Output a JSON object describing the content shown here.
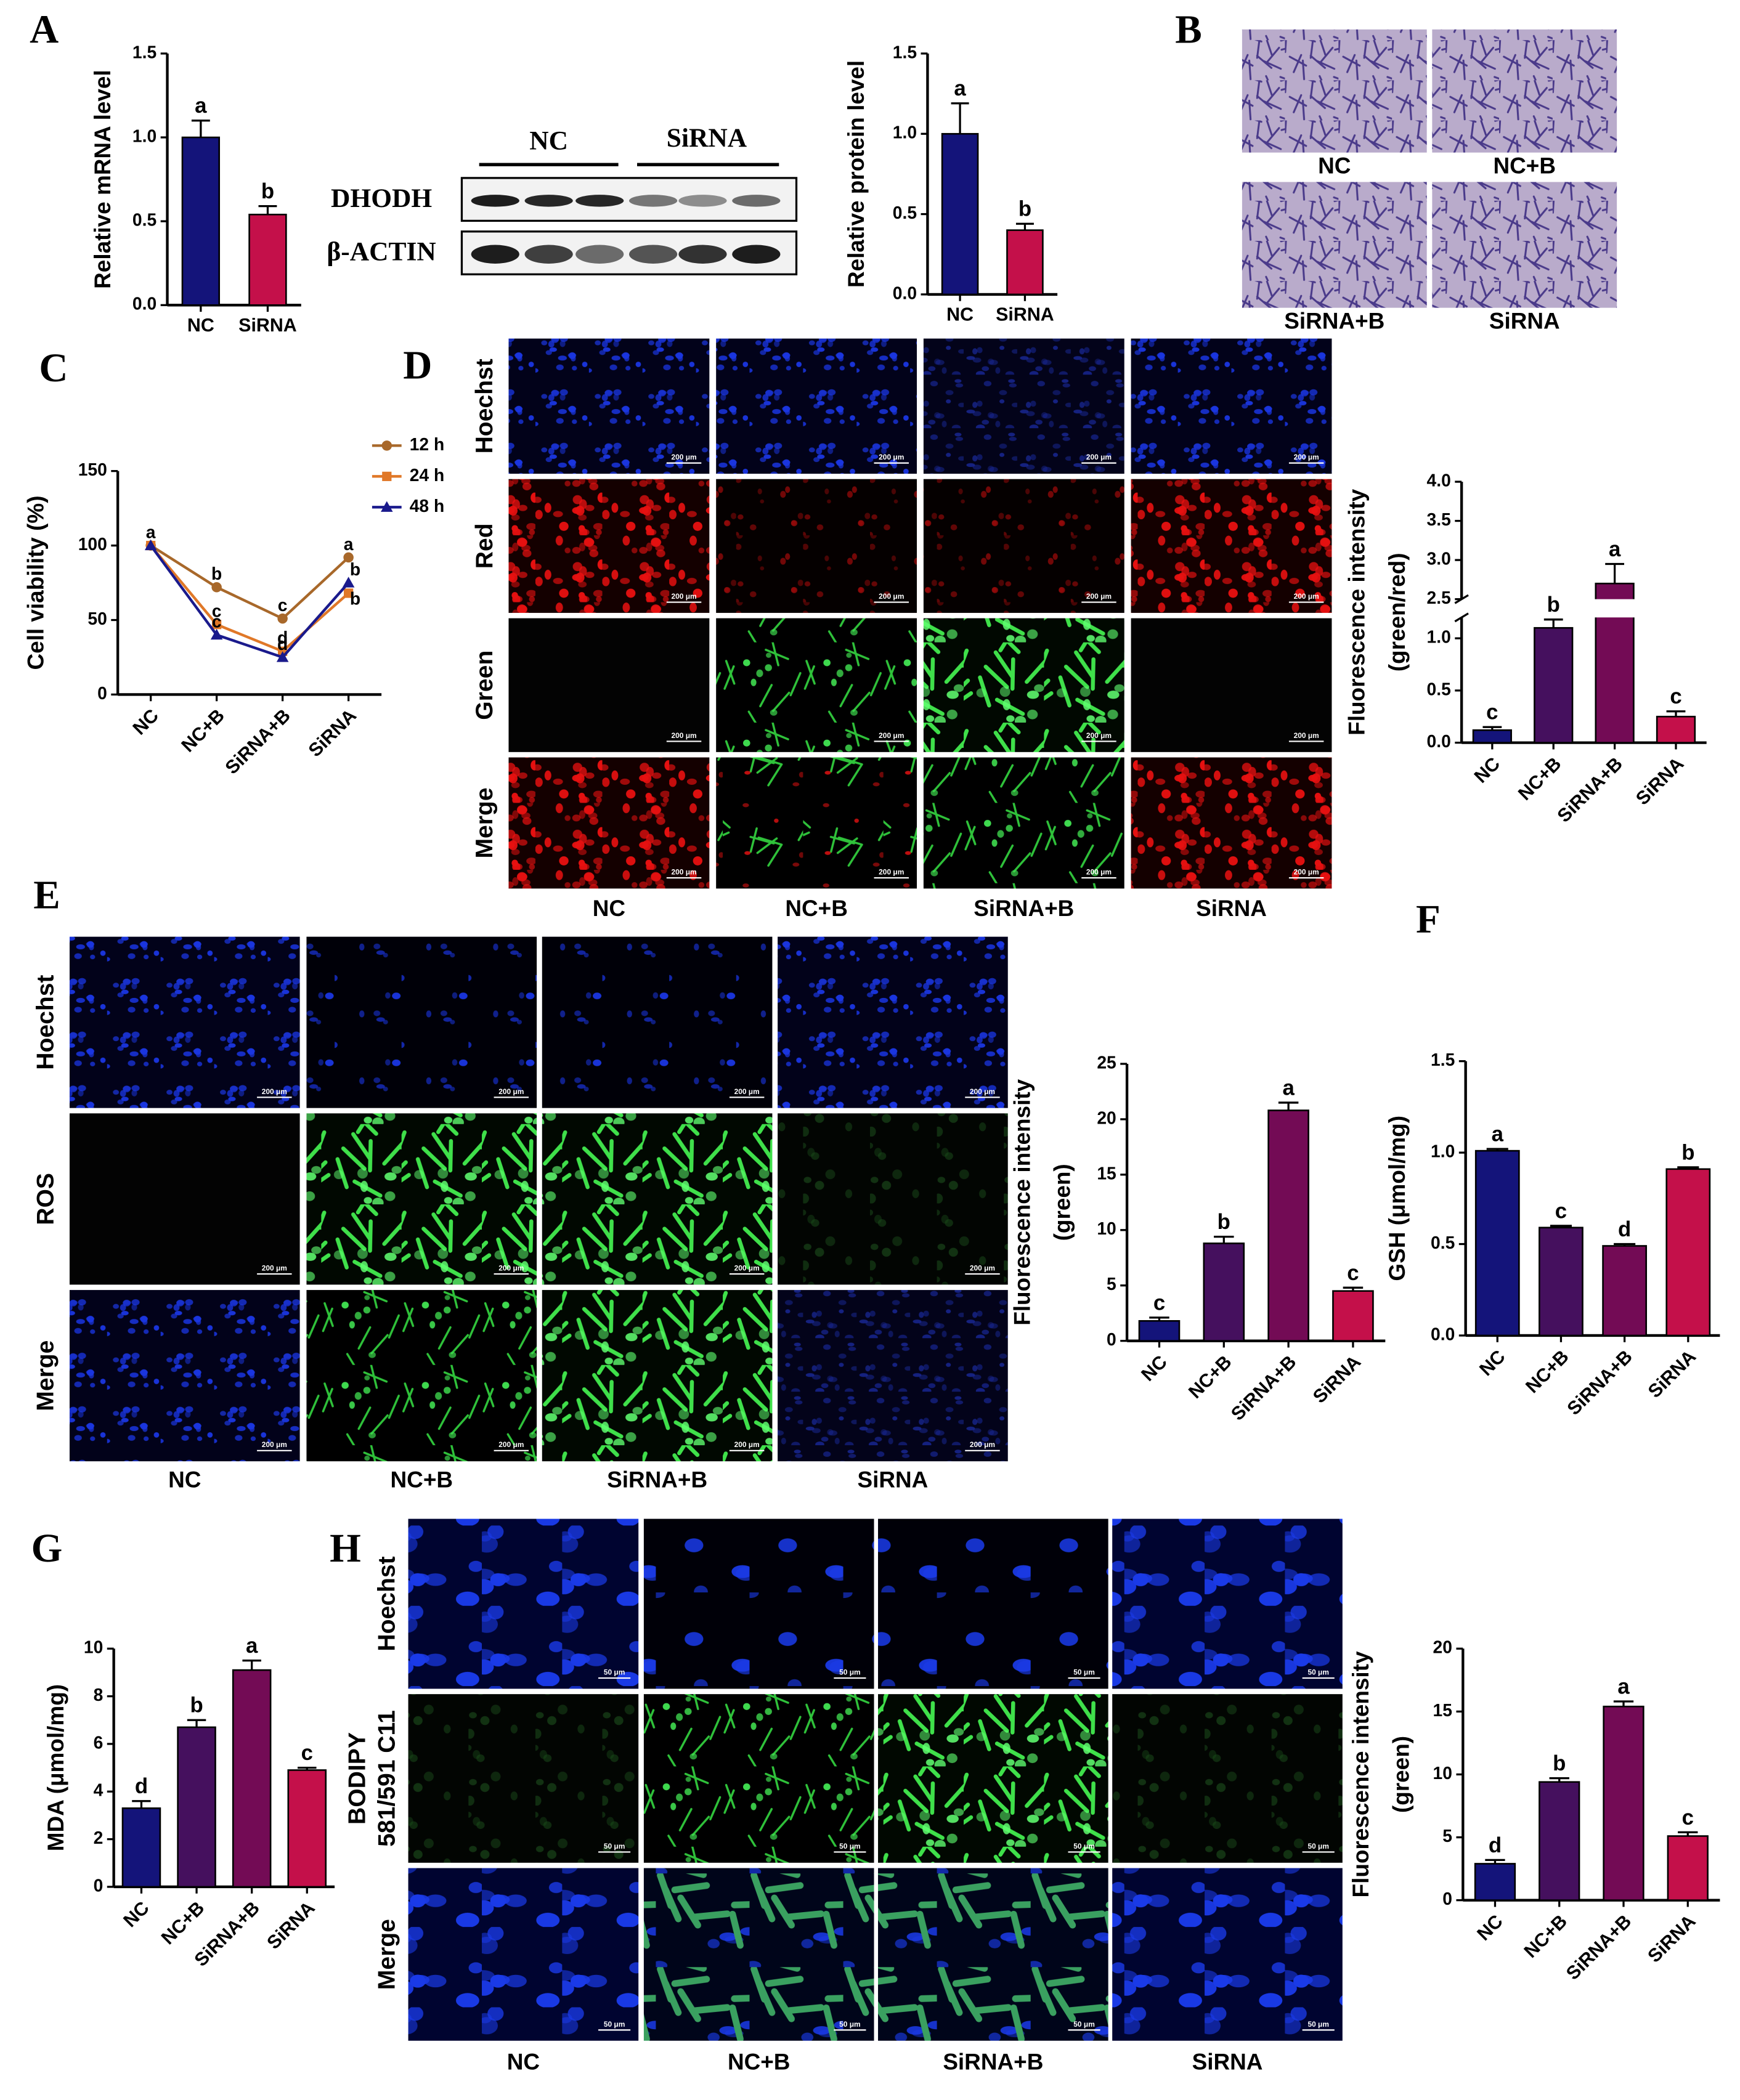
{
  "panel_letters": [
    "A",
    "B",
    "C",
    "D",
    "E",
    "F",
    "G",
    "H"
  ],
  "western_blot": {
    "groups": [
      "NC",
      "SiRNA"
    ],
    "rows": [
      "DHODH",
      "β-ACTIN"
    ]
  },
  "panel_b": {
    "labels": [
      "NC",
      "NC+B",
      "SiRNA+B",
      "SiRNA"
    ]
  },
  "panel_d": {
    "rows": [
      "Hoechst",
      "Red",
      "Green",
      "Merge"
    ],
    "columns": [
      "NC",
      "NC+B",
      "SiRNA+B",
      "SiRNA"
    ],
    "scale_bar": "200 μm"
  },
  "panel_e": {
    "rows": [
      "Hoechst",
      "ROS",
      "Merge"
    ],
    "columns": [
      "NC",
      "NC+B",
      "SiRNA+B",
      "SiRNA"
    ],
    "scale_bar": "200 μm"
  },
  "panel_h": {
    "rows": [
      "Hoechst",
      [
        "BODIPY",
        "581/591 C11"
      ],
      "Merge"
    ],
    "columns": [
      "NC",
      "NC+B",
      "SiRNA+B",
      "SiRNA"
    ],
    "scale_bar": "50 μm"
  },
  "chart_data": [
    {
      "type": "bar",
      "ylabel": "Relative mRNA level",
      "categories": [
        "NC",
        "SiRNA"
      ],
      "values": [
        1.0,
        0.54
      ],
      "errors": [
        0.1,
        0.05
      ],
      "annotations": [
        "a",
        "b"
      ],
      "colors": [
        "#14147a",
        "#c4104a"
      ],
      "ylim": [
        0,
        1.5
      ],
      "yticks": [
        {
          "value": 0,
          "label": "0.0"
        },
        0.5,
        {
          "value": 1,
          "label": "1.0"
        },
        1.5
      ]
    },
    {
      "type": "bar",
      "ylabel": "Relative protein level",
      "categories": [
        "NC",
        "SiRNA"
      ],
      "values": [
        1.0,
        0.4
      ],
      "errors": [
        0.19,
        0.04
      ],
      "annotations": [
        "a",
        "b"
      ],
      "colors": [
        "#14147a",
        "#c4104a"
      ],
      "ylim": [
        0,
        1.5
      ],
      "yticks": [
        {
          "value": 0,
          "label": "0.0"
        },
        0.5,
        {
          "value": 1,
          "label": "1.0"
        },
        1.5
      ]
    },
    {
      "type": "line",
      "ylabel": "Cell viability (%)",
      "categories": [
        "NC",
        "NC+B",
        "SiRNA+B",
        "SiRNA"
      ],
      "ylim": [
        0,
        150
      ],
      "yticks": [
        0,
        50,
        100,
        150
      ],
      "series": [
        {
          "name": "12 h",
          "color": "#a8682a",
          "marker": "circle",
          "values": [
            100,
            72,
            51,
            92
          ],
          "annotations": [
            "a",
            "b",
            "c",
            "a"
          ]
        },
        {
          "name": "24 h",
          "color": "#e07828",
          "marker": "square",
          "values": [
            100,
            47,
            29,
            68
          ],
          "annotations": [
            null,
            "c",
            "d",
            "b"
          ]
        },
        {
          "name": "48 h",
          "color": "#1a1a8c",
          "marker": "triangle",
          "values": [
            100,
            40,
            25,
            75
          ],
          "annotations": [
            null,
            "c",
            "d",
            "b"
          ]
        }
      ]
    },
    {
      "type": "bar",
      "ylabel": [
        "Fluorescence intensity",
        "(green/red)"
      ],
      "categories": [
        "NC",
        "NC+B",
        "SiRNA+B",
        "SiRNA"
      ],
      "values": [
        0.12,
        1.1,
        2.7,
        0.25
      ],
      "errors": [
        0.03,
        0.08,
        0.25,
        0.05
      ],
      "annotations": [
        "c",
        "b",
        "a",
        "c"
      ],
      "colors": [
        "#14147a",
        "#45105e",
        "#730b55",
        "#c4104a"
      ],
      "ylim": [
        0,
        4.0
      ],
      "y_break": [
        1.2,
        2.5
      ],
      "yticks": [
        {
          "value": 0,
          "label": "0.0"
        },
        0.5,
        {
          "value": 1,
          "label": "1.0"
        },
        2.5,
        {
          "value": 3,
          "label": "3.0"
        },
        3.5,
        {
          "value": 4,
          "label": "4.0"
        }
      ]
    },
    {
      "type": "bar",
      "ylabel": [
        "Fluorescence intensity",
        "(green)"
      ],
      "categories": [
        "NC",
        "NC+B",
        "SiRNA+B",
        "SiRNA"
      ],
      "values": [
        1.8,
        8.8,
        20.8,
        4.5
      ],
      "errors": [
        0.3,
        0.6,
        0.7,
        0.3
      ],
      "annotations": [
        "c",
        "b",
        "a",
        "c"
      ],
      "colors": [
        "#14147a",
        "#45105e",
        "#730b55",
        "#c4104a"
      ],
      "ylim": [
        0,
        25
      ],
      "yticks": [
        0,
        5,
        10,
        15,
        20,
        25
      ]
    },
    {
      "type": "bar",
      "ylabel": "GSH (μmol/mg)",
      "categories": [
        "NC",
        "NC+B",
        "SiRNA+B",
        "SiRNA"
      ],
      "values": [
        1.01,
        0.59,
        0.49,
        0.91
      ],
      "errors": [
        0.01,
        0.01,
        0.01,
        0.01
      ],
      "annotations": [
        "a",
        "c",
        "d",
        "b"
      ],
      "colors": [
        "#14147a",
        "#45105e",
        "#730b55",
        "#c4104a"
      ],
      "ylim": [
        0,
        1.5
      ],
      "yticks": [
        {
          "value": 0,
          "label": "0.0"
        },
        0.5,
        {
          "value": 1,
          "label": "1.0"
        },
        1.5
      ]
    },
    {
      "type": "bar",
      "ylabel": "MDA (μmol/mg)",
      "categories": [
        "NC",
        "NC+B",
        "SiRNA+B",
        "SiRNA"
      ],
      "values": [
        3.3,
        6.7,
        9.1,
        4.9
      ],
      "errors": [
        0.3,
        0.3,
        0.4,
        0.1
      ],
      "annotations": [
        "d",
        "b",
        "a",
        "c"
      ],
      "colors": [
        "#14147a",
        "#45105e",
        "#730b55",
        "#c4104a"
      ],
      "ylim": [
        0,
        10
      ],
      "yticks": [
        0,
        2,
        4,
        6,
        8,
        10
      ]
    },
    {
      "type": "bar",
      "ylabel": [
        "Fluorescence intensity",
        "(green)"
      ],
      "categories": [
        "NC",
        "NC+B",
        "SiRNA+B",
        "SiRNA"
      ],
      "values": [
        2.9,
        9.4,
        15.4,
        5.1
      ],
      "errors": [
        0.3,
        0.3,
        0.4,
        0.3
      ],
      "annotations": [
        "d",
        "b",
        "a",
        "c"
      ],
      "colors": [
        "#14147a",
        "#45105e",
        "#730b55",
        "#c4104a"
      ],
      "ylim": [
        0,
        20
      ],
      "yticks": [
        0,
        5,
        10,
        15,
        20
      ]
    }
  ]
}
